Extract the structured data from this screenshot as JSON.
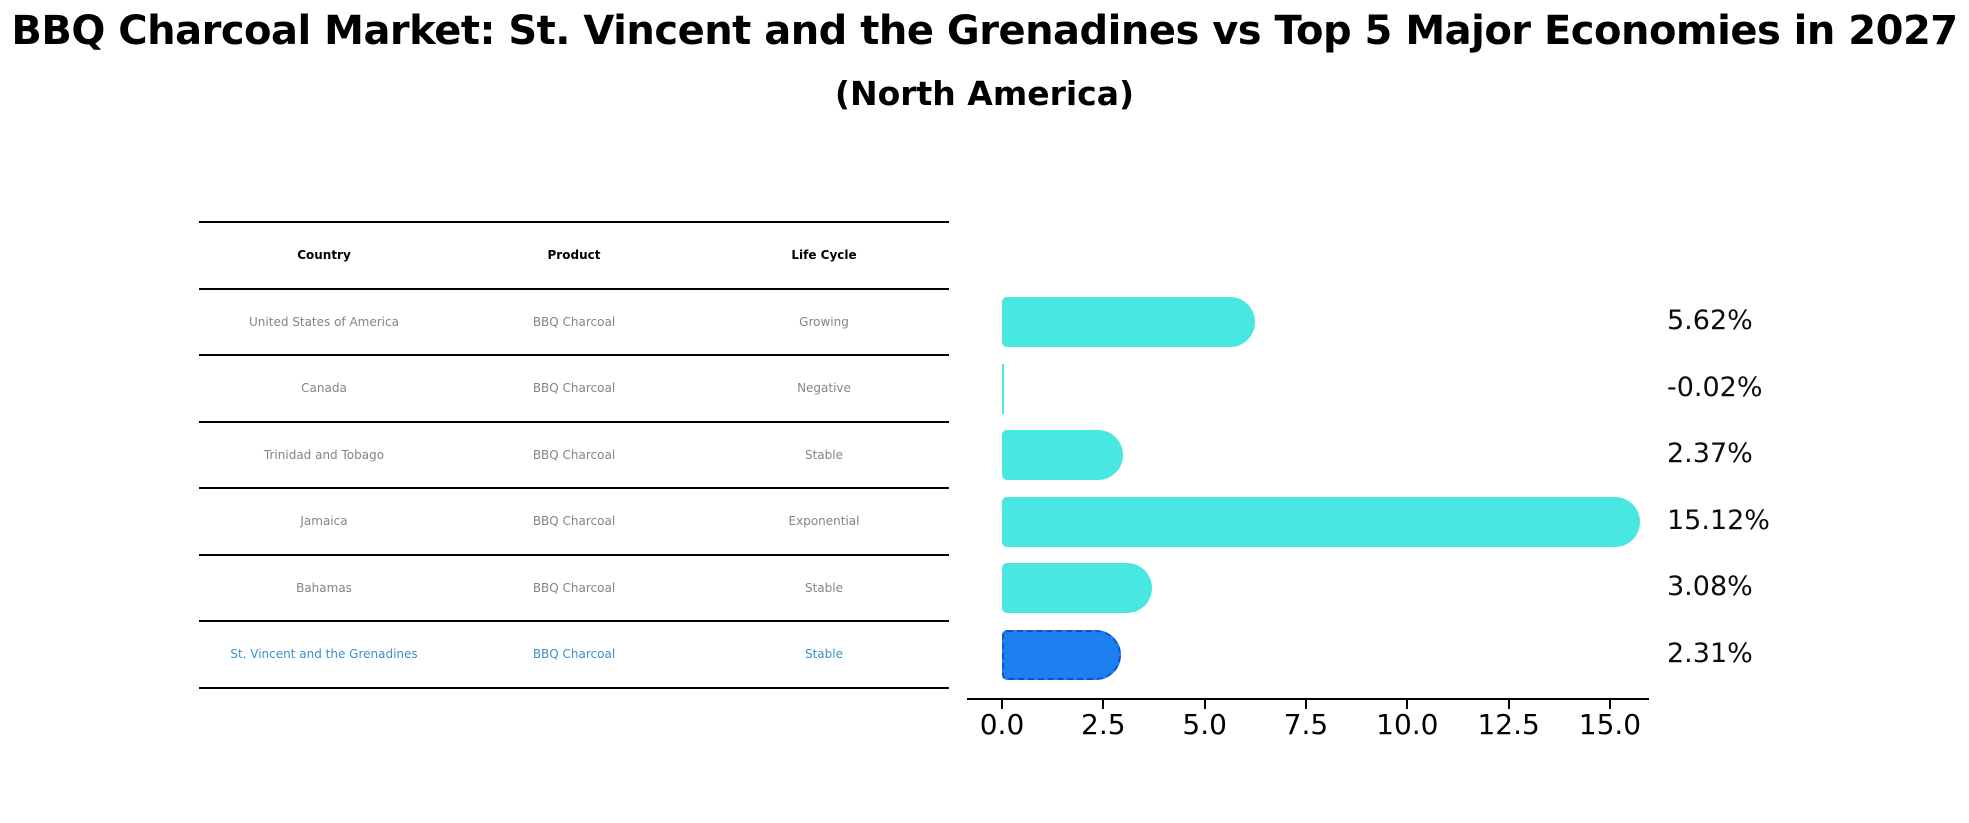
{
  "title": "BBQ Charcoal Market: St. Vincent and the Grenadines vs Top 5 Major Economies in 2027",
  "subtitle": "(North America)",
  "table": {
    "headers": [
      "Country",
      "Product",
      "Life Cycle"
    ],
    "rows": [
      {
        "country": "United States of America",
        "product": "BBQ Charcoal",
        "life_cycle": "Growing",
        "highlight": false
      },
      {
        "country": "Canada",
        "product": "BBQ Charcoal",
        "life_cycle": "Negative",
        "highlight": false
      },
      {
        "country": "Trinidad and Tobago",
        "product": "BBQ Charcoal",
        "life_cycle": "Stable",
        "highlight": false
      },
      {
        "country": "Jamaica",
        "product": "BBQ Charcoal",
        "life_cycle": "Exponential",
        "highlight": false
      },
      {
        "country": "Bahamas",
        "product": "BBQ Charcoal",
        "life_cycle": "Stable",
        "highlight": false
      },
      {
        "country": "St. Vincent and the Grenadines",
        "product": "BBQ Charcoal",
        "life_cycle": "Stable",
        "highlight": true
      }
    ]
  },
  "chart_data": {
    "type": "bar",
    "orientation": "horizontal",
    "title": "BBQ Charcoal Market: St. Vincent and the Grenadines vs Top 5 Major Economies in 2027",
    "subtitle": "(North America)",
    "categories": [
      "United States of America",
      "Canada",
      "Trinidad and Tobago",
      "Jamaica",
      "Bahamas",
      "St. Vincent and the Grenadines"
    ],
    "values": [
      5.62,
      -0.02,
      2.37,
      15.12,
      3.08,
      2.31
    ],
    "value_labels": [
      "5.62%",
      "-0.02%",
      "2.37%",
      "15.12%",
      "3.08%",
      "2.31%"
    ],
    "highlight_index": 5,
    "x_ticks": [
      0.0,
      2.5,
      5.0,
      7.5,
      10.0,
      12.5,
      15.0
    ],
    "x_tick_labels": [
      "0.0",
      "2.5",
      "5.0",
      "7.5",
      "10.0",
      "12.5",
      "15.0"
    ],
    "xlim": [
      -0.9,
      16.0
    ],
    "grid": false,
    "legend": "none"
  },
  "colors": {
    "bar": "#49e7e1",
    "highlight_bar_fill": "#1e80f0",
    "highlight_bar_border": "#0c52cf",
    "highlight_text": "#3a92c9",
    "table_text": "#858585",
    "header_text": "#000000",
    "axis": "#000000"
  }
}
